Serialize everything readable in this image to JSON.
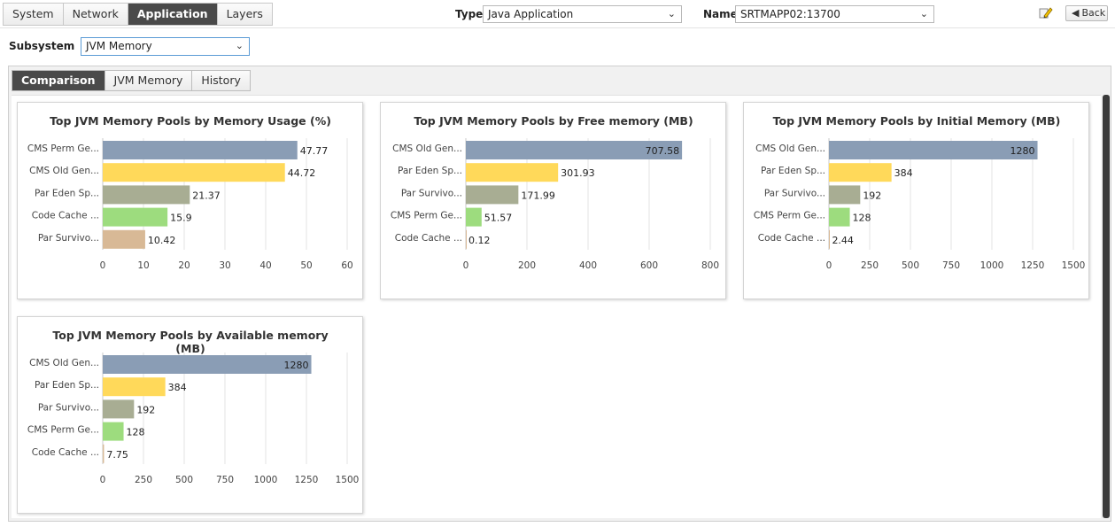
{
  "top_tabs": [
    "System",
    "Network",
    "Application",
    "Layers"
  ],
  "active_top_tab": "Application",
  "type_field": {
    "label": "Type",
    "value": "Java Application"
  },
  "name_field": {
    "label": "Name",
    "value": "SRTMAPP02:13700"
  },
  "back_button": {
    "label": "Back",
    "icon": "back-arrow-icon"
  },
  "edit_icon": "edit-pencil-icon",
  "subsystem": {
    "label": "Subsystem",
    "value": "JVM Memory"
  },
  "sub_tabs": [
    "Comparison",
    "JVM Memory",
    "History"
  ],
  "active_sub_tab": "Comparison",
  "colors": {
    "bar_colors": [
      "#8a9db5",
      "#ffd95a",
      "#a8ad93",
      "#9ddc7e",
      "#d8b996"
    ],
    "tab_active": "#4a4a4a"
  },
  "chart_data": [
    {
      "type": "bar",
      "orientation": "horizontal",
      "title": "Top JVM Memory Pools by Memory Usage (%)",
      "categories": [
        "CMS Perm Ge...",
        "CMS Old Gen...",
        "Par Eden Sp...",
        "Code Cache ...",
        "Par Survivo..."
      ],
      "values": [
        47.77,
        44.72,
        21.37,
        15.9,
        10.42
      ],
      "value_labels": [
        "47.77",
        "44.72",
        "21.37",
        "15.9",
        "10.42"
      ],
      "xlim": [
        0,
        60
      ],
      "ticks": [
        "0",
        "10",
        "20",
        "30",
        "40",
        "50",
        "60"
      ],
      "grid": true
    },
    {
      "type": "bar",
      "orientation": "horizontal",
      "title": "Top JVM Memory Pools by Free memory (MB)",
      "categories": [
        "CMS Old Gen...",
        "Par Eden Sp...",
        "Par Survivo...",
        "CMS Perm Ge...",
        "Code Cache ..."
      ],
      "values": [
        707.58,
        301.93,
        171.99,
        51.57,
        0.12
      ],
      "value_labels": [
        "707.58",
        "301.93",
        "171.99",
        "51.57",
        "0.12"
      ],
      "xlim": [
        0,
        800
      ],
      "ticks": [
        "0",
        "200",
        "400",
        "600",
        "800"
      ],
      "grid": true
    },
    {
      "type": "bar",
      "orientation": "horizontal",
      "title": "Top JVM Memory Pools by Initial Memory (MB)",
      "categories": [
        "CMS Old Gen...",
        "Par Eden Sp...",
        "Par Survivo...",
        "CMS Perm Ge...",
        "Code Cache ..."
      ],
      "values": [
        1280,
        384,
        192,
        128,
        2.44
      ],
      "value_labels": [
        "1280",
        "384",
        "192",
        "128",
        "2.44"
      ],
      "xlim": [
        0,
        1500
      ],
      "ticks": [
        "0",
        "250",
        "500",
        "750",
        "1000",
        "1250",
        "1500"
      ],
      "grid": true
    },
    {
      "type": "bar",
      "orientation": "horizontal",
      "title": "Top JVM Memory Pools by Available memory (MB)",
      "title_lines": [
        "Top JVM Memory Pools by Available memory",
        "(MB)"
      ],
      "categories": [
        "CMS Old Gen...",
        "Par Eden Sp...",
        "Par Survivo...",
        "CMS Perm Ge...",
        "Code Cache ..."
      ],
      "values": [
        1280,
        384,
        192,
        128,
        7.75
      ],
      "value_labels": [
        "1280",
        "384",
        "192",
        "128",
        "7.75"
      ],
      "xlim": [
        0,
        1500
      ],
      "ticks": [
        "0",
        "250",
        "500",
        "750",
        "1000",
        "1250",
        "1500"
      ],
      "grid": true
    }
  ]
}
